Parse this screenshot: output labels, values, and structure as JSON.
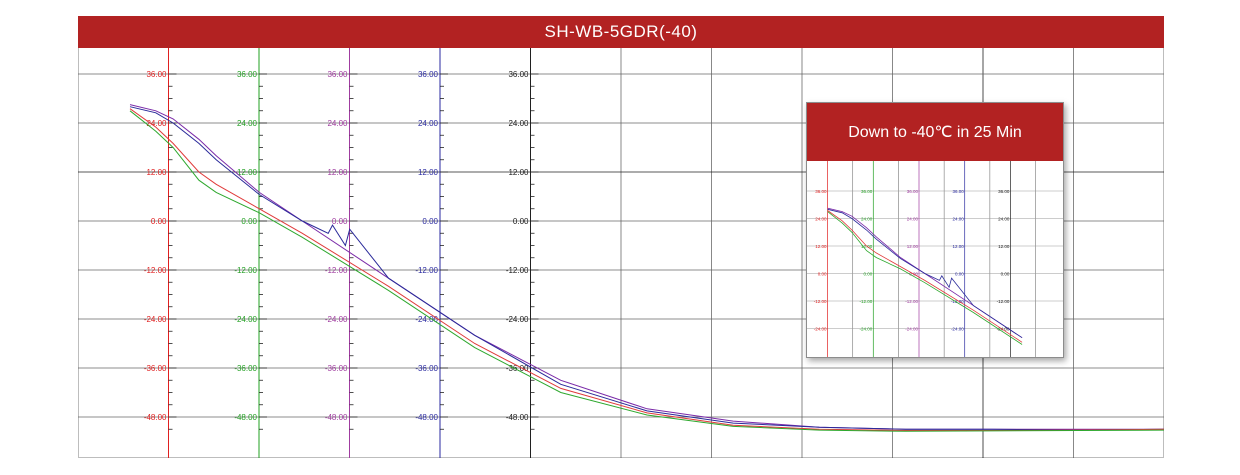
{
  "chart_data": {
    "type": "line",
    "title": "SH-WB-5GDR(-40)",
    "ylim": [
      -52,
      36
    ],
    "ytick_values": [
      36,
      24,
      12,
      0,
      -12,
      -24,
      -36,
      -48
    ],
    "ytick_labels": [
      "36.00",
      "24.00",
      "12.00",
      "0.00",
      "-12.00",
      "-24.00",
      "-36.00",
      "-48.00"
    ],
    "axis_colors": [
      "#e02020",
      "#22a022",
      "#a03ca0",
      "#2a2aa0",
      "#202020"
    ],
    "grid": true,
    "x_divisions": 12,
    "series": [
      {
        "color": "#7a2aa8",
        "x": [
          0,
          0.3,
          0.5,
          0.8,
          1,
          1.5,
          2,
          3,
          4,
          5,
          6,
          7,
          8,
          9,
          10,
          11,
          12
        ],
        "values": [
          28.5,
          27,
          25,
          20,
          16,
          7,
          0,
          -14,
          -28,
          -39,
          -46,
          -49,
          -50.5,
          -51,
          -51,
          -51,
          -51
        ]
      },
      {
        "color": "#2a2a9a",
        "x": [
          0,
          0.3,
          0.5,
          0.8,
          1,
          1.5,
          2,
          2.3,
          2.35,
          2.5,
          2.55,
          3,
          4,
          5,
          6,
          7,
          8,
          9,
          10,
          11,
          12
        ],
        "values": [
          28,
          26.5,
          24,
          19,
          15,
          6.5,
          0,
          -3,
          -1,
          -6,
          -2,
          -14,
          -28,
          -40,
          -46.5,
          -49.5,
          -50.5,
          -51,
          -51,
          -51.2,
          -51
        ]
      },
      {
        "color": "#e03a3a",
        "x": [
          0,
          0.3,
          0.5,
          0.8,
          1,
          1.5,
          2,
          3,
          4,
          5,
          6,
          7,
          8,
          9,
          10,
          11,
          12
        ],
        "values": [
          27.5,
          23,
          19,
          12,
          9,
          3,
          -3,
          -16,
          -30,
          -41,
          -47,
          -50,
          -51,
          -51.3,
          -51.3,
          -51.2,
          -51
        ]
      },
      {
        "color": "#2ea82e",
        "x": [
          0,
          0.3,
          0.5,
          0.8,
          1,
          1.5,
          2,
          3,
          4,
          5,
          6,
          7,
          8,
          9,
          10,
          11,
          12
        ],
        "values": [
          27,
          22,
          18,
          10,
          7,
          2,
          -4,
          -17,
          -31,
          -42,
          -47.5,
          -50.3,
          -51.2,
          -51.5,
          -51.4,
          -51.3,
          -51.2
        ]
      }
    ],
    "inset": {
      "title": "Down to -40℃ in 25 Min",
      "ytick_values": [
        36,
        24,
        12,
        0,
        -12,
        -24
      ],
      "ytick_labels": [
        "36.00",
        "24.00",
        "12.00",
        "0.00",
        "-12.00",
        "-24.00"
      ]
    }
  }
}
